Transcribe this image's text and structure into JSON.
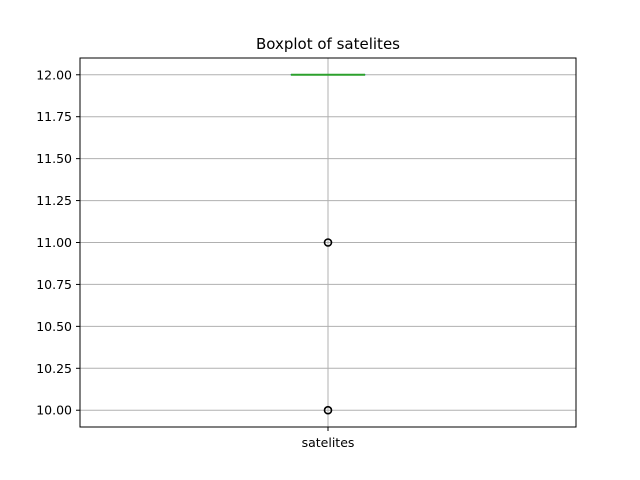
{
  "chart_data": {
    "type": "box",
    "title": "Boxplot of satelites",
    "xlabel": "",
    "ylabel": "",
    "categories": [
      "satelites"
    ],
    "ylim": [
      9.9,
      12.1
    ],
    "yticks": [
      "10.00",
      "10.25",
      "10.50",
      "10.75",
      "11.00",
      "11.25",
      "11.50",
      "11.75",
      "12.00"
    ],
    "grid": true,
    "boxes": [
      {
        "name": "satelites",
        "min": 12,
        "q1": 12,
        "median": 12,
        "q3": 12,
        "max": 12,
        "outliers": [
          11,
          10
        ]
      }
    ],
    "colors": {
      "box": "#1f77b4",
      "median": "#2ca02c",
      "grid": "#b0b0b0",
      "outlier": "#000000"
    }
  }
}
